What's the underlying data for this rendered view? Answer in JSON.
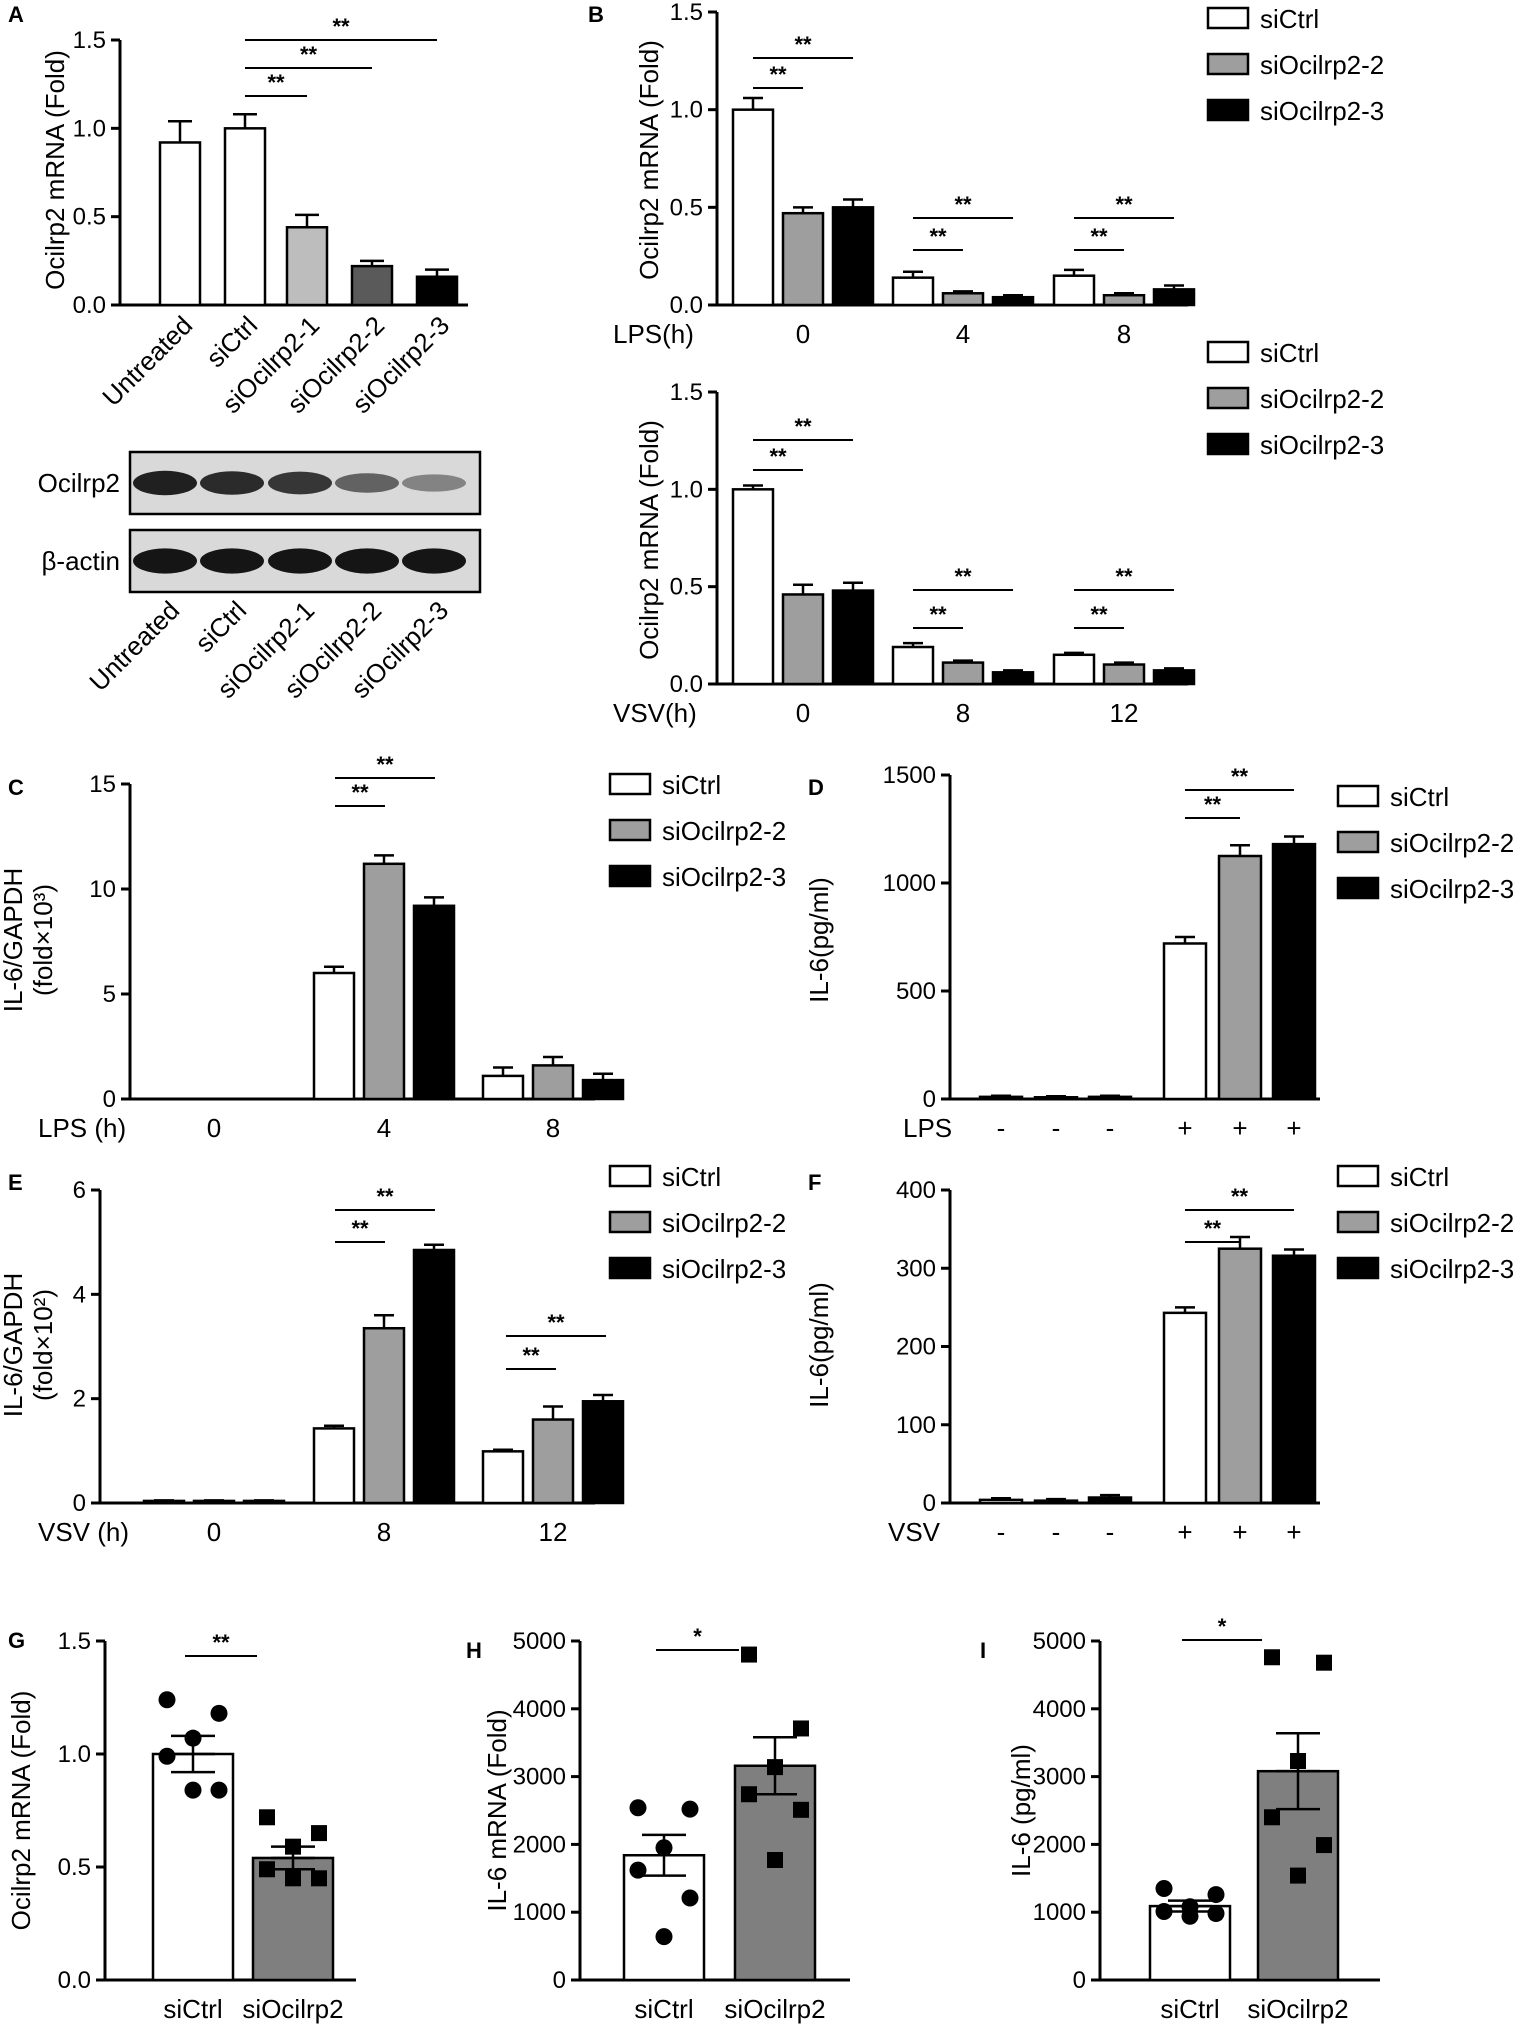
{
  "colors": {
    "siCtrl": "#ffffff",
    "siOcilrp2-1": "#bdbdbd",
    "siOcilrp2-2": "#9e9e9e",
    "siOcilrp2-3": "#000000",
    "siOcilrp2-2-dark": "#5a5a5a",
    "siOcilrp2-dot": "#7f7f7f"
  },
  "legend_labels": [
    "siCtrl",
    "siOcilrp2-2",
    "siOcilrp2-3"
  ],
  "chart_data": [
    {
      "panel": "A",
      "type": "bar",
      "ylabel": "Ocilrp2 mRNA (Fold)",
      "ylim": [
        0,
        1.5
      ],
      "yticks": [
        "0.0",
        "0.5",
        "1.0",
        "1.5"
      ],
      "categories": [
        "Untreated",
        "siCtrl",
        "siOcilrp2-1",
        "siOcilrp2-2",
        "siOcilrp2-3"
      ],
      "values": [
        0.92,
        1.0,
        0.44,
        0.22,
        0.16
      ],
      "errors": [
        0.12,
        0.08,
        0.07,
        0.03,
        0.04
      ],
      "significance": [
        "**",
        "**",
        "**"
      ]
    },
    {
      "panel": "A-blot",
      "type": "western_blot",
      "rows": [
        "Ocilrp2",
        "β-actin"
      ],
      "lanes": [
        "Untreated",
        "siCtrl",
        "siOcilrp2-1",
        "siOcilrp2-2",
        "siOcilrp2-3"
      ],
      "band_intensity": {
        "Ocilrp2": [
          0.9,
          0.85,
          0.8,
          0.6,
          0.45
        ],
        "β-actin": [
          0.95,
          0.95,
          0.95,
          0.95,
          0.95
        ]
      }
    },
    {
      "panel": "B-top",
      "type": "bar",
      "ylabel": "Ocilrp2 mRNA (Fold)",
      "xlabel": "LPS(h)",
      "ylim": [
        0,
        1.5
      ],
      "yticks": [
        "0.0",
        "0.5",
        "1.0",
        "1.5"
      ],
      "categories": [
        "0",
        "4",
        "8"
      ],
      "series": [
        {
          "name": "siCtrl",
          "values": [
            1.0,
            0.14,
            0.15
          ],
          "errors": [
            0.06,
            0.03,
            0.03
          ]
        },
        {
          "name": "siOcilrp2-2",
          "values": [
            0.47,
            0.06,
            0.05
          ],
          "errors": [
            0.03,
            0.01,
            0.01
          ]
        },
        {
          "name": "siOcilrp2-3",
          "values": [
            0.5,
            0.04,
            0.08
          ],
          "errors": [
            0.04,
            0.01,
            0.02
          ]
        }
      ],
      "significance": [
        "**",
        "**",
        "**",
        "**",
        "**",
        "**"
      ]
    },
    {
      "panel": "B-bottom",
      "type": "bar",
      "ylabel": "Ocilrp2 mRNA (Fold)",
      "xlabel": "VSV(h)",
      "ylim": [
        0,
        1.5
      ],
      "yticks": [
        "0.0",
        "0.5",
        "1.0",
        "1.5"
      ],
      "categories": [
        "0",
        "8",
        "12"
      ],
      "series": [
        {
          "name": "siCtrl",
          "values": [
            1.0,
            0.19,
            0.15
          ],
          "errors": [
            0.02,
            0.02,
            0.01
          ]
        },
        {
          "name": "siOcilrp2-2",
          "values": [
            0.46,
            0.11,
            0.1
          ],
          "errors": [
            0.05,
            0.01,
            0.01
          ]
        },
        {
          "name": "siOcilrp2-3",
          "values": [
            0.48,
            0.06,
            0.07
          ],
          "errors": [
            0.04,
            0.01,
            0.01
          ]
        }
      ],
      "significance": [
        "**",
        "**",
        "**",
        "**",
        "**",
        "**"
      ]
    },
    {
      "panel": "C",
      "type": "bar",
      "ylabel": "IL-6/GAPDH (fold×10³)",
      "xlabel": "LPS (h)",
      "ylim": [
        0,
        15
      ],
      "yticks": [
        "0",
        "5",
        "10",
        "15"
      ],
      "categories": [
        "0",
        "4",
        "8"
      ],
      "series": [
        {
          "name": "siCtrl",
          "values": [
            0,
            6.0,
            1.1
          ],
          "errors": [
            0,
            0.3,
            0.4
          ]
        },
        {
          "name": "siOcilrp2-2",
          "values": [
            0,
            11.2,
            1.6
          ],
          "errors": [
            0,
            0.4,
            0.4
          ]
        },
        {
          "name": "siOcilrp2-3",
          "values": [
            0,
            9.2,
            0.9
          ],
          "errors": [
            0,
            0.4,
            0.3
          ]
        }
      ],
      "significance": [
        "**",
        "**"
      ]
    },
    {
      "panel": "D",
      "type": "bar",
      "ylabel": "IL-6(pg/ml)",
      "xlabel": "LPS",
      "ylim": [
        0,
        1500
      ],
      "yticks": [
        "0",
        "500",
        "1000",
        "1500"
      ],
      "categories": [
        "-",
        "-",
        "-",
        "+",
        "+",
        "+"
      ],
      "values": [
        10,
        8,
        10,
        720,
        1125,
        1180
      ],
      "errors": [
        5,
        5,
        5,
        30,
        50,
        35
      ],
      "significance": [
        "**",
        "**"
      ]
    },
    {
      "panel": "E",
      "type": "bar",
      "ylabel": "IL-6/GAPDH (fold×10²)",
      "xlabel": "VSV (h)",
      "ylim": [
        0,
        6
      ],
      "yticks": [
        "0",
        "2",
        "4",
        "6"
      ],
      "categories": [
        "0",
        "8",
        "12"
      ],
      "series": [
        {
          "name": "siCtrl",
          "values": [
            0.04,
            1.43,
            0.99
          ],
          "errors": [
            0.01,
            0.05,
            0.03
          ]
        },
        {
          "name": "siOcilrp2-2",
          "values": [
            0.04,
            3.35,
            1.6
          ],
          "errors": [
            0.01,
            0.25,
            0.25
          ]
        },
        {
          "name": "siOcilrp2-3",
          "values": [
            0.04,
            4.85,
            1.95
          ],
          "errors": [
            0.01,
            0.1,
            0.12
          ]
        }
      ],
      "significance": [
        "**",
        "**",
        "**",
        "**"
      ]
    },
    {
      "panel": "F",
      "type": "bar",
      "ylabel": "IL-6(pg/ml)",
      "xlabel": "VSV",
      "ylim": [
        0,
        400
      ],
      "yticks": [
        "0",
        "100",
        "200",
        "300",
        "400"
      ],
      "categories": [
        "-",
        "-",
        "-",
        "+",
        "+",
        "+"
      ],
      "values": [
        4,
        3,
        7,
        243,
        325,
        316
      ],
      "errors": [
        2,
        2,
        3,
        7,
        15,
        8
      ],
      "significance": [
        "**",
        "**"
      ]
    },
    {
      "panel": "G",
      "type": "bar",
      "ylabel": "Ocilrp2 mRNA (Fold)",
      "ylim": [
        0,
        1.5
      ],
      "yticks": [
        "0.0",
        "0.5",
        "1.0",
        "1.5"
      ],
      "categories": [
        "siCtrl",
        "siOcilrp2"
      ],
      "values": [
        1.0,
        0.54
      ],
      "errors": [
        0.08,
        0.05
      ],
      "points": [
        [
          1.24,
          1.18,
          1.07,
          0.99,
          0.84,
          0.84
        ],
        [
          0.72,
          0.65,
          0.59,
          0.49,
          0.45,
          0.45
        ]
      ],
      "significance": [
        "**"
      ]
    },
    {
      "panel": "H",
      "type": "bar",
      "ylabel": "IL-6 mRNA (Fold)",
      "ylim": [
        0,
        5000
      ],
      "yticks": [
        "0",
        "1000",
        "2000",
        "3000",
        "4000",
        "5000"
      ],
      "categories": [
        "siCtrl",
        "siOcilrp2"
      ],
      "values": [
        1840,
        3160
      ],
      "errors": [
        300,
        420
      ],
      "points": [
        [
          2540,
          2520,
          1950,
          1620,
          1210,
          640
        ],
        [
          4800,
          3710,
          3140,
          2740,
          2510,
          1770
        ]
      ],
      "significance": [
        "*"
      ]
    },
    {
      "panel": "I",
      "type": "bar",
      "ylabel": "IL-6  (pg/ml)",
      "ylim": [
        0,
        5000
      ],
      "yticks": [
        "0",
        "1000",
        "2000",
        "3000",
        "4000",
        "5000"
      ],
      "categories": [
        "siCtrl",
        "siOcilrp2"
      ],
      "values": [
        1090,
        3080
      ],
      "errors": [
        80,
        560
      ],
      "points": [
        [
          1350,
          1260,
          1080,
          1010,
          980,
          940
        ],
        [
          4760,
          4680,
          3230,
          2400,
          1990,
          1540
        ]
      ],
      "significance": [
        "*"
      ]
    }
  ]
}
